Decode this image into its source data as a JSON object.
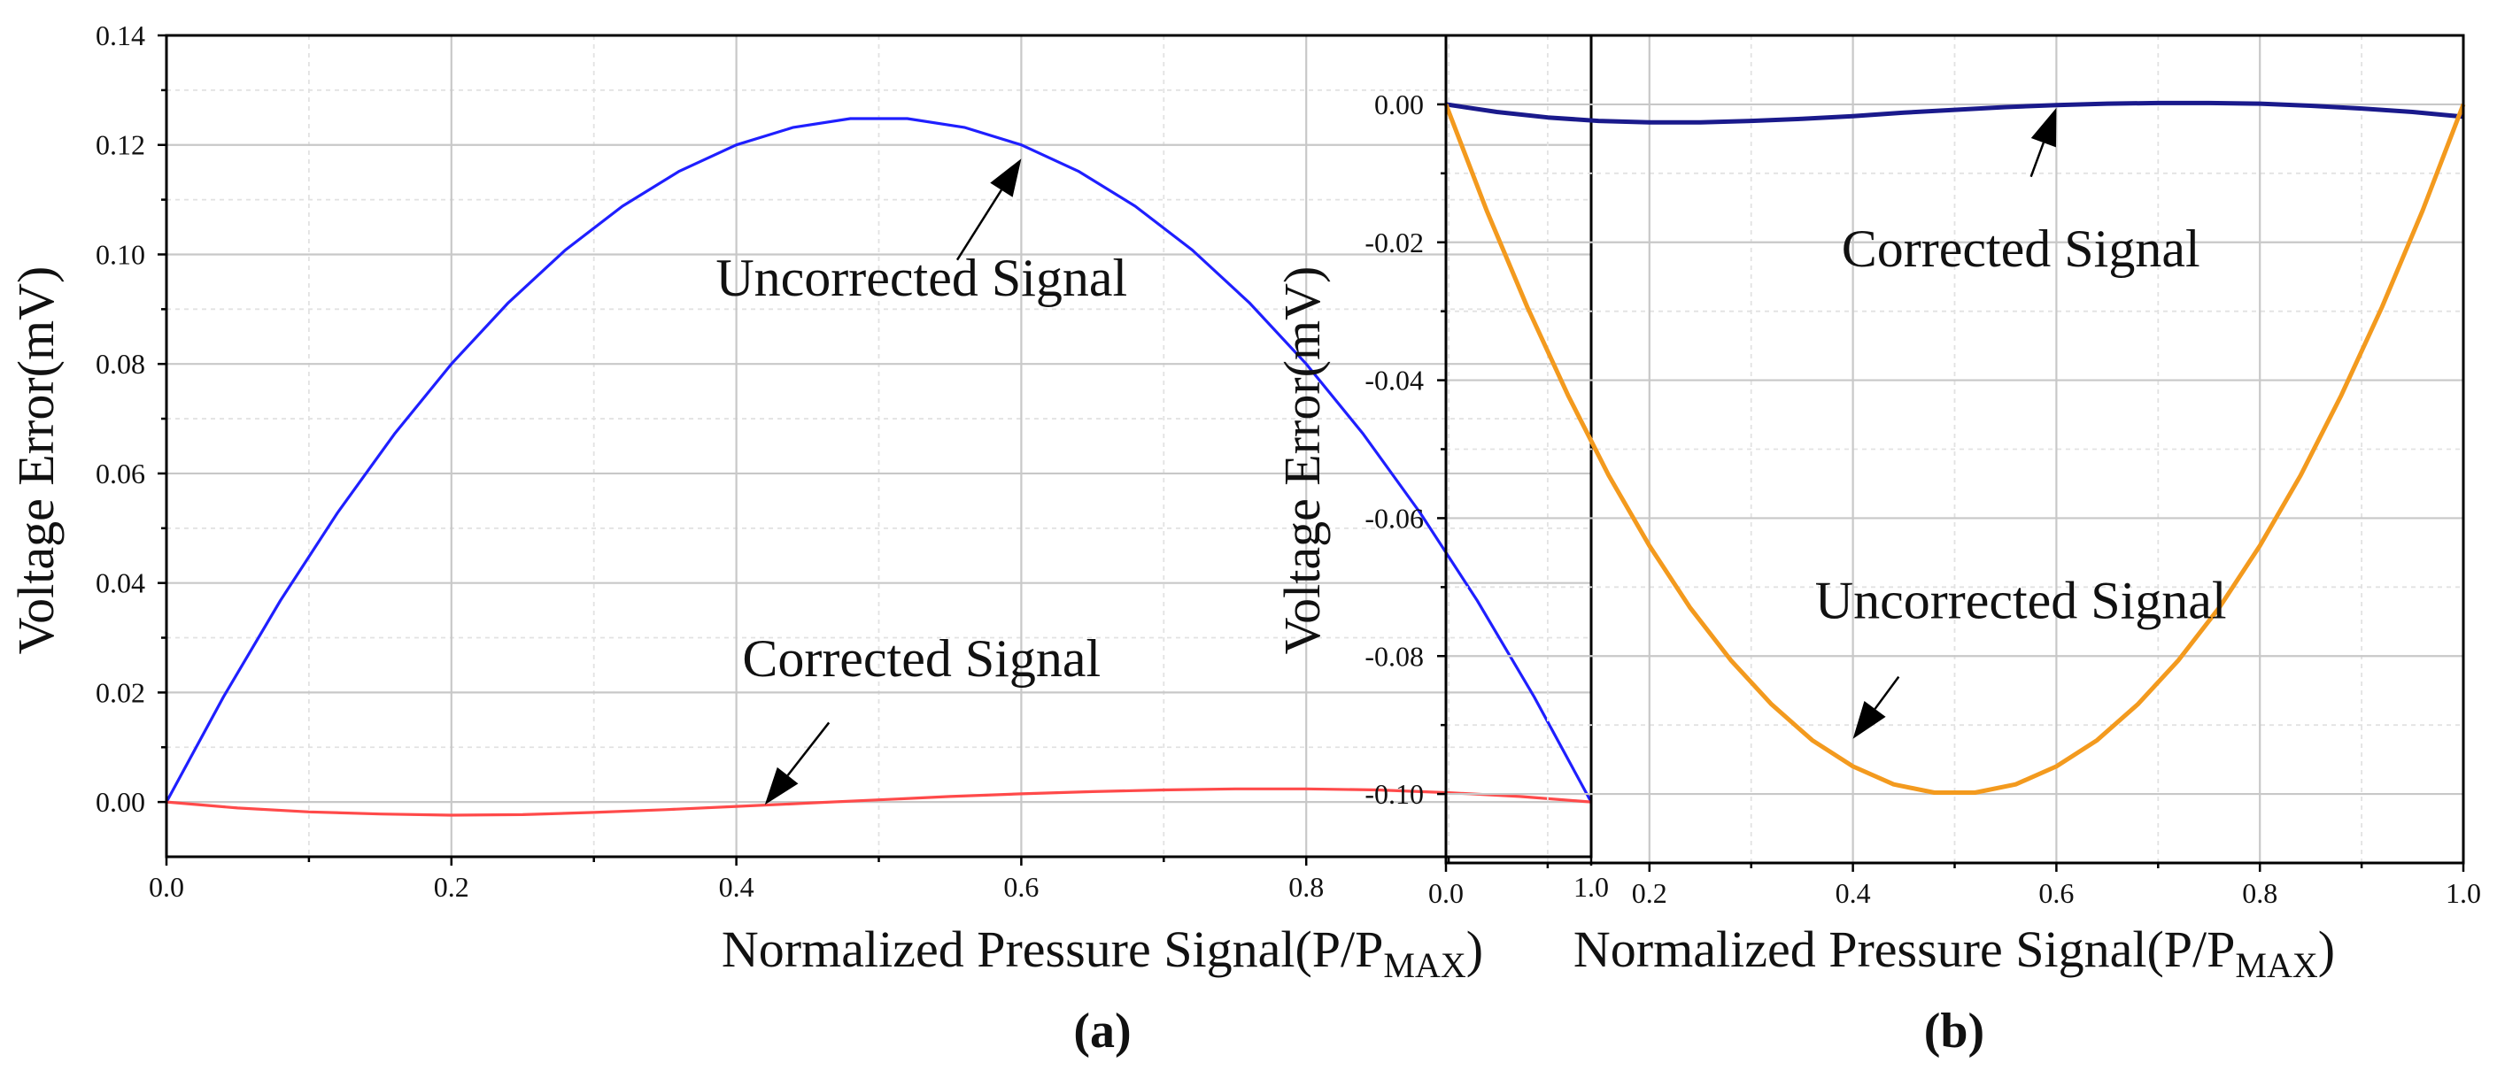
{
  "chart_data": [
    {
      "type": "line",
      "panel_label": "(a)",
      "xlabel_main": "Normalized Pressure Signal(P/P",
      "xlabel_sub": "MAX",
      "xlabel_close": ")",
      "ylabel": "Voltage Error(mV)",
      "xlim": [
        0,
        1
      ],
      "ylim": [
        -0.01,
        0.14
      ],
      "xticks": [
        "0.0",
        "0.2",
        "0.4",
        "0.6",
        "0.8",
        "1.0"
      ],
      "yticks": [
        "0.00",
        "0.02",
        "0.04",
        "0.06",
        "0.08",
        "0.10",
        "0.12",
        "0.14"
      ],
      "grid": true,
      "series": [
        {
          "name": "Uncorrected Signal",
          "color": "#1f1fff",
          "x": [
            0,
            0.04,
            0.08,
            0.12,
            0.16,
            0.2,
            0.24,
            0.28,
            0.32,
            0.36,
            0.4,
            0.44,
            0.48,
            0.52,
            0.56,
            0.6,
            0.64,
            0.68,
            0.72,
            0.76,
            0.8,
            0.84,
            0.88,
            0.92,
            0.96,
            1.0
          ],
          "y": [
            0,
            0.0192,
            0.0368,
            0.0528,
            0.0672,
            0.08,
            0.0912,
            0.1008,
            0.1088,
            0.1152,
            0.12,
            0.1232,
            0.1248,
            0.1248,
            0.1232,
            0.12,
            0.1152,
            0.1088,
            0.1008,
            0.0912,
            0.08,
            0.0672,
            0.0528,
            0.0368,
            0.0192,
            0
          ]
        },
        {
          "name": "Corrected Signal",
          "color": "#ff4a4a",
          "x": [
            0,
            0.05,
            0.1,
            0.15,
            0.2,
            0.25,
            0.3,
            0.35,
            0.4,
            0.45,
            0.5,
            0.55,
            0.6,
            0.65,
            0.7,
            0.75,
            0.8,
            0.85,
            0.9,
            0.95,
            1.0
          ],
          "y": [
            0,
            -0.0011,
            -0.0018,
            -0.0022,
            -0.0024,
            -0.0023,
            -0.0019,
            -0.0014,
            -0.0008,
            -0.0002,
            0.0004,
            0.001,
            0.0015,
            0.0019,
            0.0022,
            0.0024,
            0.0024,
            0.0022,
            0.0017,
            0.001,
            0
          ]
        }
      ],
      "annotations": [
        {
          "text": "Uncorrected Signal",
          "x": 0.53,
          "y": 0.0925,
          "arrow_to": [
            0.6,
            0.1175
          ],
          "arrow_from": [
            0.555,
            0.099
          ]
        },
        {
          "text": "Corrected Signal",
          "x": 0.53,
          "y": 0.023,
          "arrow_to": [
            0.42,
            -0.0005
          ],
          "arrow_from": [
            0.465,
            0.0145
          ]
        }
      ]
    },
    {
      "type": "line",
      "panel_label": "(b)",
      "xlabel_main": "Normalized Pressure Signal(P/P",
      "xlabel_sub": "MAX",
      "xlabel_close": ")",
      "ylabel": "Voltage Error(mV)",
      "xlim": [
        0,
        1
      ],
      "ylim": [
        -0.11,
        0.01
      ],
      "xticks": [
        "0.0",
        "0.2",
        "0.4",
        "0.6",
        "0.8",
        "1.0"
      ],
      "yticks": [
        "-0.10",
        "-0.08",
        "-0.06",
        "-0.04",
        "-0.02",
        "0.00"
      ],
      "grid": true,
      "series": [
        {
          "name": "Corrected Signal",
          "color": "#1a1a8c",
          "x": [
            0,
            0.05,
            0.1,
            0.15,
            0.2,
            0.25,
            0.3,
            0.35,
            0.4,
            0.45,
            0.5,
            0.55,
            0.6,
            0.65,
            0.7,
            0.75,
            0.8,
            0.85,
            0.9,
            0.95,
            1.0
          ],
          "y": [
            0,
            -0.0011,
            -0.0019,
            -0.0024,
            -0.0026,
            -0.0026,
            -0.0024,
            -0.0021,
            -0.0017,
            -0.0012,
            -0.0008,
            -0.0004,
            -0.0001,
            0.0001,
            0.0002,
            0.0002,
            0.0001,
            -0.0002,
            -0.0006,
            -0.0011,
            -0.0018
          ]
        },
        {
          "name": "Uncorrected Signal",
          "color": "#f39a1e",
          "x": [
            0,
            0.04,
            0.08,
            0.12,
            0.16,
            0.2,
            0.24,
            0.28,
            0.32,
            0.36,
            0.4,
            0.44,
            0.48,
            0.52,
            0.56,
            0.6,
            0.64,
            0.68,
            0.72,
            0.76,
            0.8,
            0.84,
            0.88,
            0.92,
            0.96,
            1.0
          ],
          "y": [
            0,
            -0.0154,
            -0.0294,
            -0.0422,
            -0.0538,
            -0.064,
            -0.073,
            -0.0806,
            -0.087,
            -0.0922,
            -0.096,
            -0.0986,
            -0.0998,
            -0.0998,
            -0.0986,
            -0.096,
            -0.0922,
            -0.087,
            -0.0806,
            -0.073,
            -0.064,
            -0.0538,
            -0.0422,
            -0.0294,
            -0.0154,
            0
          ]
        }
      ],
      "annotations": [
        {
          "text": "Corrected Signal",
          "x": 0.565,
          "y": -0.0235,
          "arrow_to": [
            0.6,
            -0.0005
          ],
          "arrow_from": [
            0.575,
            -0.0105
          ]
        },
        {
          "text": "Uncorrected Signal",
          "x": 0.565,
          "y": -0.0745,
          "arrow_to": [
            0.4,
            -0.092
          ],
          "arrow_from": [
            0.445,
            -0.083
          ]
        }
      ]
    }
  ]
}
